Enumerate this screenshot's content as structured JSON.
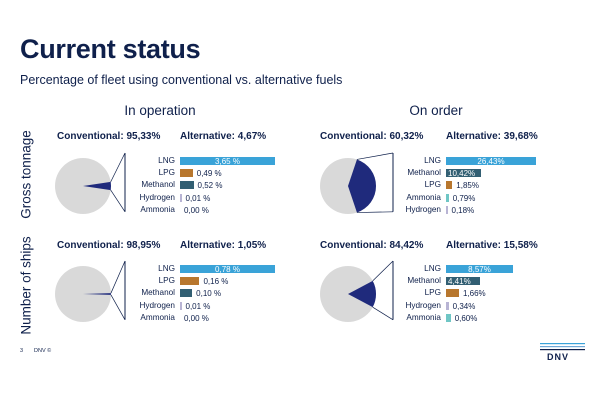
{
  "slide": {
    "title": "Current status",
    "subtitle": "Percentage of fleet using conventional vs. alternative fuels",
    "col_headers": [
      "In operation",
      "On order"
    ],
    "row_headers": [
      "Gross tonnage",
      "Number of ships"
    ],
    "page_number": "3",
    "footer_brand": "DNV ©",
    "logo": "DNV"
  },
  "colors": {
    "pie_conventional": "#d9d9d9",
    "pie_alternative": "#1f2a7c",
    "LNG": "#3aa3d8",
    "LPG": "#b8772e",
    "Methanol": "#325f73",
    "Hydrogen": "#b8b4d4",
    "Ammonia": "#6fc6c5",
    "bracket": "#0f204b"
  },
  "chart_data": [
    {
      "type": "pie",
      "panel": "in-operation-gross-tonnage",
      "conventional_label": "Conventional: 95,33%",
      "alternative_label": "Alternative: 4,67%",
      "conventional": 95.33,
      "alternative": 4.67,
      "breakdown": {
        "type": "bar",
        "categories": [
          "LNG",
          "LPG",
          "Methanol",
          "Hydrogen",
          "Ammonia"
        ],
        "values": [
          3.65,
          0.49,
          0.52,
          0.01,
          0.0
        ],
        "labels": [
          "3,65 %",
          "0,49 %",
          "0,52 %",
          "0,01 %",
          "0,00 %"
        ]
      }
    },
    {
      "type": "pie",
      "panel": "on-order-gross-tonnage",
      "conventional_label": "Conventional: 60,32%",
      "alternative_label": "Alternative: 39,68%",
      "conventional": 60.32,
      "alternative": 39.68,
      "breakdown": {
        "type": "bar",
        "categories": [
          "LNG",
          "Methanol",
          "LPG",
          "Ammonia",
          "Hydrogen"
        ],
        "values": [
          26.43,
          10.42,
          1.85,
          0.79,
          0.18
        ],
        "labels": [
          "26,43%",
          "10,42%",
          "1,85%",
          "0,79%",
          "0,18%"
        ]
      }
    },
    {
      "type": "pie",
      "panel": "in-operation-number-of-ships",
      "conventional_label": "Conventional: 98,95%",
      "alternative_label": "Alternative: 1,05%",
      "conventional": 98.95,
      "alternative": 1.05,
      "breakdown": {
        "type": "bar",
        "categories": [
          "LNG",
          "LPG",
          "Methanol",
          "Hydrogen",
          "Ammonia"
        ],
        "values": [
          0.78,
          0.16,
          0.1,
          0.01,
          0.0
        ],
        "labels": [
          "0,78 %",
          "0,16 %",
          "0,10 %",
          "0,01 %",
          "0,00 %"
        ]
      }
    },
    {
      "type": "pie",
      "panel": "on-order-number-of-ships",
      "conventional_label": "Conventional: 84,42%",
      "alternative_label": "Alternative: 15,58%",
      "conventional": 84.42,
      "alternative": 15.58,
      "breakdown": {
        "type": "bar",
        "categories": [
          "LNG",
          "Methanol",
          "LPG",
          "Hydrogen",
          "Ammonia"
        ],
        "values": [
          8.57,
          4.41,
          1.66,
          0.34,
          0.6
        ],
        "labels": [
          "8,57%",
          "4,41%",
          "1,66%",
          "0,34%",
          "0,60%"
        ]
      }
    }
  ]
}
